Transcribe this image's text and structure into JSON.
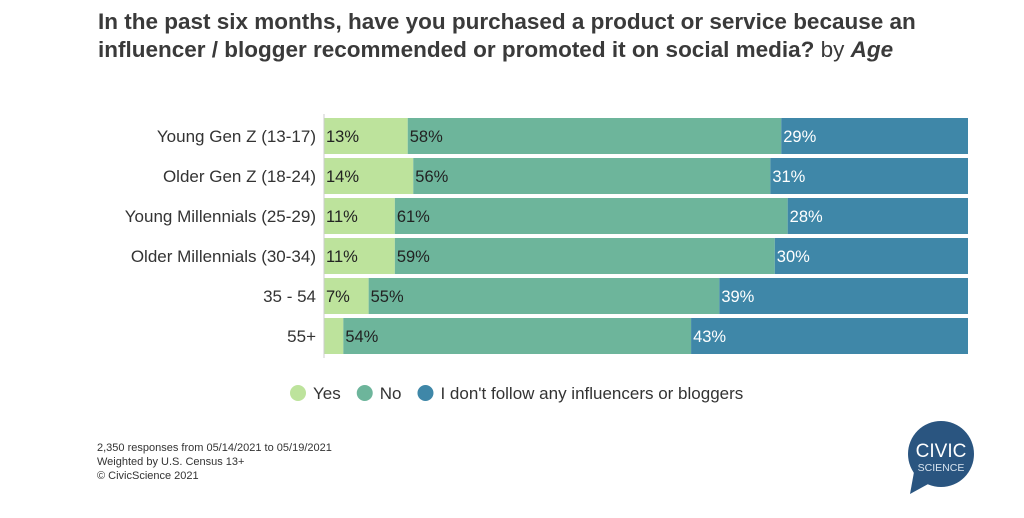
{
  "chart_data": {
    "type": "bar",
    "orientation": "horizontal",
    "stacked": true,
    "title": "In the past six months, have you purchased a product or service because an influencer / blogger recommended or promoted it on social media?",
    "title_suffix": "by",
    "title_suffix_em": "Age",
    "categories": [
      "Young Gen Z (13-17)",
      "Older Gen Z (18-24)",
      "Young Millennials (25-29)",
      "Older Millennials (30-34)",
      "35 - 54",
      "55+"
    ],
    "series": [
      {
        "name": "Yes",
        "color": "#bde39c",
        "values": [
          13,
          14,
          11,
          11,
          7,
          3
        ],
        "labels": [
          "13%",
          "14%",
          "11%",
          "11%",
          "7%",
          ""
        ]
      },
      {
        "name": "No",
        "color": "#6db59b",
        "values": [
          58,
          56,
          61,
          59,
          55,
          54
        ],
        "labels": [
          "58%",
          "56%",
          "61%",
          "59%",
          "55%",
          "54%"
        ]
      },
      {
        "name": "I don't follow any influencers or bloggers",
        "color": "#3f87a8",
        "values": [
          29,
          31,
          28,
          30,
          39,
          43
        ],
        "labels": [
          "29%",
          "31%",
          "28%",
          "30%",
          "39%",
          "43%"
        ]
      }
    ],
    "xlim": [
      0,
      100
    ],
    "grid": false,
    "legend": "bottom"
  },
  "footnotes": [
    "2,350 responses from 05/14/2021 to 05/19/2021",
    "Weighted by U.S. Census 13+",
    "© CivicScience 2021"
  ],
  "logo": {
    "line1": "CIVIC",
    "line2": "SCIENCE",
    "color": "#2a5580"
  }
}
